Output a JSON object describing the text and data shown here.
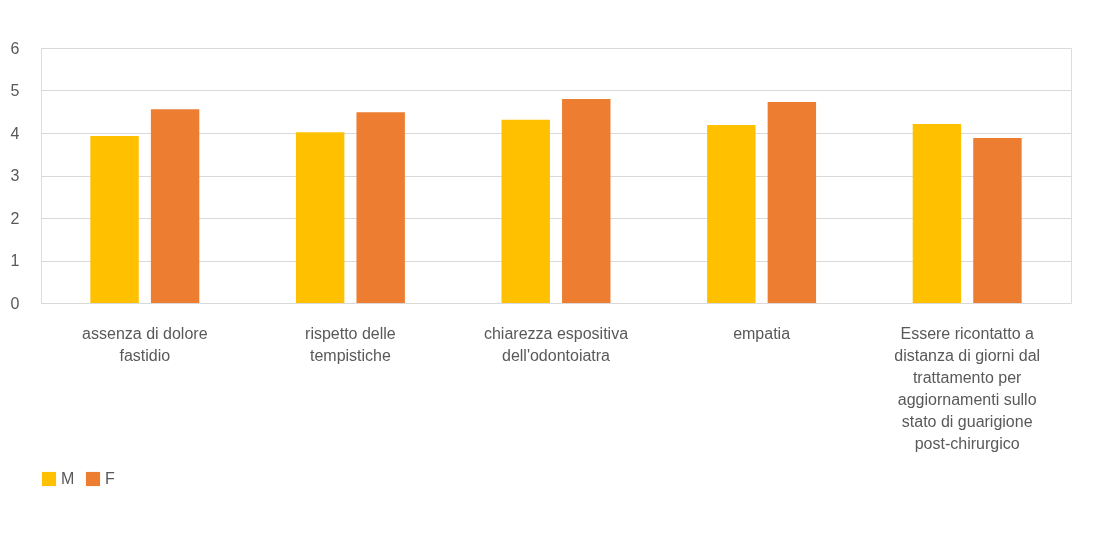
{
  "chart_data": {
    "type": "bar",
    "categories": [
      "assenza di dolore fastidio",
      "rispetto delle tempistiche",
      "chiarezza espositiva dell'odontoiatra",
      "empatia",
      "Essere ricontatto a distanza di giorni dal trattamento per aggiornamenti sullo stato di guarigione post-chirurgico"
    ],
    "series": [
      {
        "name": "M",
        "color": "#ffc000",
        "values": [
          3.93,
          4.02,
          4.31,
          4.19,
          4.21
        ]
      },
      {
        "name": "F",
        "color": "#ed7d31",
        "values": [
          4.56,
          4.49,
          4.8,
          4.73,
          3.88
        ]
      }
    ],
    "ylim": [
      0,
      6
    ],
    "yticks": [
      0,
      1,
      2,
      3,
      4,
      5,
      6
    ],
    "grid": "y",
    "legend": "bottom"
  }
}
